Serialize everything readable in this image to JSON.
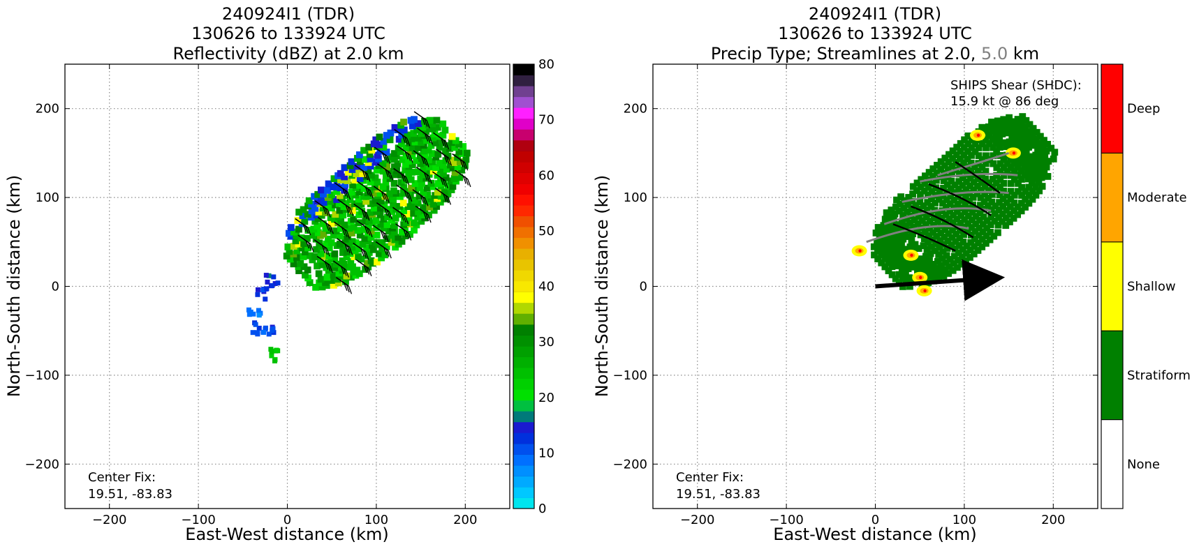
{
  "chart_data": [
    {
      "type": "heatmap",
      "title_lines": [
        "240924I1 (TDR)",
        "130626 to 133924 UTC",
        "Reflectivity (dBZ) at 2.0 km"
      ],
      "xlabel": "East-West distance (km)",
      "ylabel": "North-South distance (km)",
      "xlim": [
        -250,
        250
      ],
      "ylim": [
        -250,
        250
      ],
      "xticks": [
        -200,
        -100,
        0,
        100,
        200
      ],
      "yticks": [
        -200,
        -100,
        0,
        100,
        200
      ],
      "grid": true,
      "annotation": [
        "Center Fix:",
        "19.51, -83.83"
      ],
      "colorbar": {
        "range": [
          0,
          80
        ],
        "ticks": [
          0,
          10,
          20,
          30,
          40,
          50,
          60,
          70,
          80
        ],
        "colors": [
          "#00e5ee",
          "#00c8ff",
          "#00aaff",
          "#008fff",
          "#0070ff",
          "#0050ee",
          "#0030dd",
          "#1a1ad0",
          "#007a7a",
          "#00c040",
          "#00e000",
          "#00d000",
          "#00c000",
          "#00b000",
          "#00a000",
          "#009000",
          "#008000",
          "#60b000",
          "#b0d800",
          "#ffff00",
          "#f8e800",
          "#f0d800",
          "#e8c400",
          "#e8b000",
          "#f09000",
          "#f07000",
          "#f05000",
          "#ff2800",
          "#ff1000",
          "#f00000",
          "#e00000",
          "#d00000",
          "#c00000",
          "#b00010",
          "#c8006e",
          "#e000c8",
          "#ff20ff",
          "#a050d0",
          "#704090",
          "#302040",
          "#000000"
        ]
      },
      "echo_swath": {
        "center": [
          95,
          100
        ],
        "length_km": 230,
        "width_km": 105,
        "rotation_deg": -42
      },
      "echo_values_dbz": [
        15,
        20,
        25,
        30,
        35,
        40
      ]
    },
    {
      "type": "heatmap",
      "title_lines": [
        "240924I1 (TDR)",
        "130626 to 133924 UTC",
        "Precip Type; Streamlines at 2.0,",
        "5.0",
        "km"
      ],
      "xlabel": "East-West distance (km)",
      "ylabel": "North-South distance (km)",
      "xlim": [
        -250,
        250
      ],
      "ylim": [
        -250,
        250
      ],
      "xticks": [
        -200,
        -100,
        0,
        100,
        200
      ],
      "yticks": [
        -200,
        -100,
        0,
        100,
        200
      ],
      "grid": true,
      "annotation": [
        "Center Fix:",
        "19.51, -83.83"
      ],
      "shear_label": [
        "SHIPS Shear (SHDC):",
        "15.9 kt @ 86 deg"
      ],
      "shear_vector": {
        "magnitude_kt": 15.9,
        "direction_deg": 86
      },
      "categories": [
        "None",
        "Stratiform",
        "Shallow",
        "Moderate",
        "Deep"
      ],
      "category_colors": [
        "#ffffff",
        "#008000",
        "#ffff00",
        "#ffa500",
        "#ff0000"
      ]
    }
  ]
}
